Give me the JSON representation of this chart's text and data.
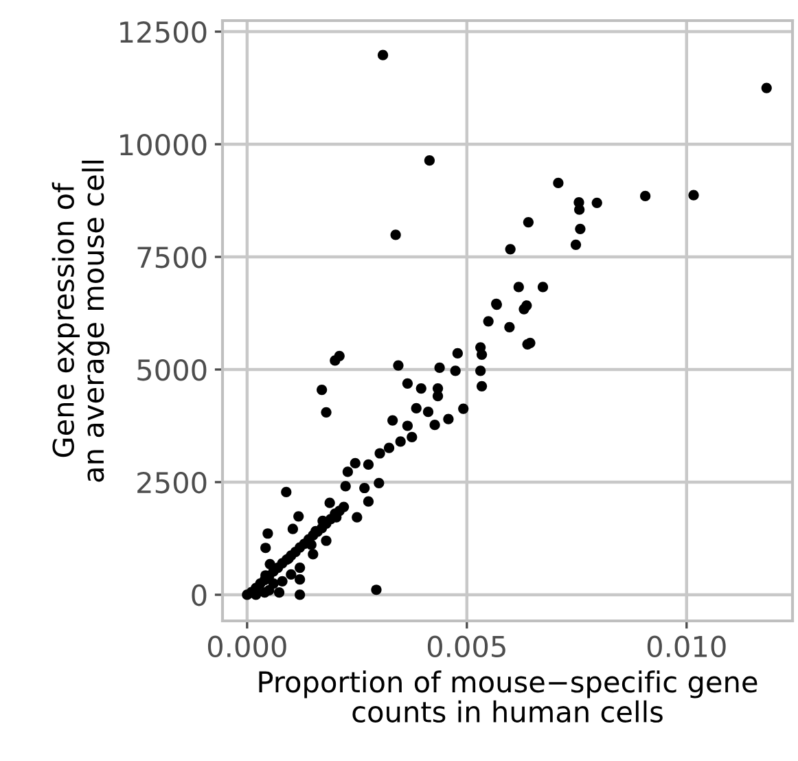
{
  "chart_data": {
    "type": "scatter",
    "xlabel": "Proportion of mouse−specific gene\ncounts in human cells",
    "ylabel": "Gene expression of\nan average mouse cell",
    "xlim": [
      -0.00056,
      0.01241
    ],
    "ylim": [
      -580,
      12745
    ],
    "xticks": [
      {
        "value": 0,
        "label": "0.000"
      },
      {
        "value": 0.005,
        "label": "0.005"
      },
      {
        "value": 0.01,
        "label": "0.010"
      }
    ],
    "yticks": [
      0,
      2500,
      5000,
      7500,
      10000,
      12500
    ],
    "grid": true,
    "marker": "circle",
    "series": [
      {
        "color": "#000000",
        "x": [
          0.00309,
          0.01182,
          0.00415,
          0.00338,
          0.00708,
          0.00755,
          0.00756,
          0.00796,
          0.00906,
          0.01016,
          0.0064,
          0.00758,
          0.00748,
          0.00599,
          0.00618,
          0.00673,
          0.00567,
          0.00636,
          0.00568,
          0.0063,
          0.00549,
          0.00597,
          0.00638,
          0.00644,
          0.00531,
          0.00534,
          0.00479,
          0.00474,
          0.00438,
          0.00344,
          0.00365,
          0.00396,
          0.00434,
          0.00434,
          0.00531,
          0.00534,
          0.00492,
          0.00458,
          0.00427,
          0.00385,
          0.00412,
          0.00331,
          0.00365,
          0.00375,
          0.00349,
          0.00323,
          0.00302,
          0.00276,
          0.003,
          0.00246,
          0.00229,
          0.00224,
          0.00267,
          0.00276,
          0.0025,
          0.00188,
          0.00089,
          0.00117,
          0.00104,
          0.00047,
          0.00042,
          0.0012,
          0.0012,
          0.00294,
          0.00073,
          0.00156,
          0.00146,
          0.00094,
          0.0,
          0.00042,
          0.00203,
          0.00172,
          0.00052,
          0.002,
          0.0021,
          0.0017,
          0.0018,
          0.0001,
          0.0002,
          0.0003,
          0.0004,
          0.0005,
          0.0006,
          0.0007,
          0.0008,
          0.0009,
          0.001,
          0.0011,
          0.0012,
          0.0013,
          0.0014,
          0.0015,
          0.0016,
          0.0017,
          0.0018,
          0.0019,
          0.002,
          0.0021,
          0.0022,
          0.0005,
          0.0008,
          0.0012,
          0.0015,
          0.0018,
          0.0002,
          0.0004,
          0.0006,
          0.001
        ],
        "values": [
          11980,
          11250,
          9640,
          7990,
          9140,
          8710,
          8550,
          8700,
          8850,
          8870,
          8270,
          8120,
          7770,
          7670,
          6830,
          6830,
          6460,
          6420,
          6440,
          6340,
          6070,
          5940,
          5560,
          5590,
          5490,
          5330,
          5360,
          4970,
          5040,
          5090,
          4690,
          4580,
          4580,
          4410,
          4970,
          4630,
          4130,
          3900,
          3770,
          4140,
          4060,
          3870,
          3750,
          3500,
          3400,
          3260,
          3140,
          2890,
          2480,
          2920,
          2730,
          2410,
          2370,
          2070,
          1720,
          2040,
          2280,
          1740,
          1460,
          1360,
          1040,
          340,
          0,
          110,
          50,
          1410,
          1110,
          800,
          0,
          430,
          1720,
          1640,
          680,
          5200,
          5300,
          4550,
          4050,
          60,
          150,
          250,
          330,
          420,
          520,
          600,
          700,
          780,
          870,
          950,
          1050,
          1130,
          1230,
          1320,
          1400,
          1480,
          1580,
          1680,
          1800,
          1860,
          1950,
          100,
          300,
          600,
          900,
          1200,
          0,
          50,
          250,
          450
        ]
      }
    ]
  }
}
